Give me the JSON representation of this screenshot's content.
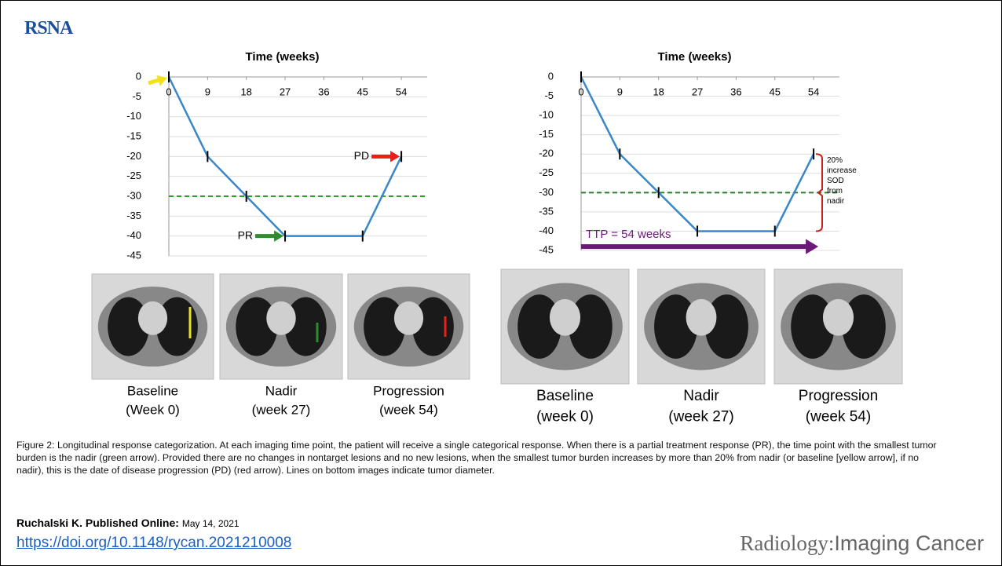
{
  "header": {
    "logo": "RSNA"
  },
  "chart_data": [
    {
      "type": "line",
      "xlabel": "Time (weeks)",
      "x": [
        0,
        9,
        18,
        27,
        45,
        54
      ],
      "series": [
        {
          "color": "#3a86c8",
          "values": [
            0,
            -20,
            -30,
            -40,
            -40,
            -20
          ]
        }
      ],
      "xlim": [
        0,
        60
      ],
      "xticks": [
        0,
        9,
        18,
        27,
        36,
        45,
        54
      ],
      "ylim": [
        -45,
        0
      ],
      "yticks": [
        0,
        -5,
        -10,
        -15,
        -20,
        -25,
        -30,
        -35,
        -40,
        -45
      ],
      "grid": true,
      "threshold": -30,
      "threshold_color": "#2e9e2e",
      "annotations": [
        {
          "x": 0,
          "y": 0,
          "color": "#f2e21a"
        },
        {
          "text": "PR",
          "x": 27,
          "y": -40,
          "color": "#2e8b2e"
        },
        {
          "text": "PD",
          "x": 54,
          "y": -20,
          "color": "#e8201c"
        }
      ]
    },
    {
      "type": "line",
      "xlabel": "Time (weeks)",
      "x": [
        0,
        9,
        18,
        27,
        45,
        54
      ],
      "series": [
        {
          "color": "#3a86c8",
          "values": [
            0,
            -20,
            -30,
            -40,
            -40,
            -20
          ]
        }
      ],
      "xlim": [
        0,
        60
      ],
      "xticks": [
        0,
        9,
        18,
        27,
        36,
        45,
        54
      ],
      "ylim": [
        -45,
        0
      ],
      "yticks": [
        0,
        -5,
        -10,
        -15,
        -20,
        -25,
        -30,
        -35,
        -40,
        -45
      ],
      "grid": true,
      "threshold": -30,
      "threshold_color": "#2e7d2e",
      "span": {
        "text": "TTP = 54 weeks",
        "from": 0,
        "to": 54,
        "y": -44,
        "color": "#6b1a7a"
      },
      "bracket": {
        "lines": [
          "20%",
          "increase",
          "SOD",
          "from",
          "nadir"
        ],
        "from": -20,
        "to": -40,
        "color": "#c8201c"
      }
    }
  ],
  "images_left": [
    {
      "label": [
        "Baseline",
        "(Week 0)"
      ]
    },
    {
      "label": [
        "Nadir",
        "(week 27)"
      ]
    },
    {
      "label": [
        "Progression",
        "(week 54)"
      ]
    }
  ],
  "images_right": [
    {
      "label": [
        "Baseline",
        "(week 0)"
      ]
    },
    {
      "label": [
        "Nadir",
        "(week 27)"
      ]
    },
    {
      "label": [
        "Progression",
        "(week 54)"
      ]
    }
  ],
  "caption": "Figure 2: Longitudinal response categorization. At each imaging time point, the patient will receive a single categorical response. When there is a partial treatment response (PR), the time point with the smallest tumor burden is the nadir (green arrow). Provided there are no changes in nontarget lesions and no new lesions, when the smallest tumor burden increases by more than 20% from nadir (or baseline [yellow arrow], if no nadir), this is the date of disease progression (PD) (red arrow). Lines on bottom images indicate tumor diameter.",
  "citation": {
    "author": "Ruchalski K. Published Online:",
    "date": "May 14, 2021",
    "doi": "https://doi.org/10.1148/rycan.2021210008"
  },
  "journal": {
    "name": "Radiology:",
    "subtitle": "Imaging Cancer"
  }
}
